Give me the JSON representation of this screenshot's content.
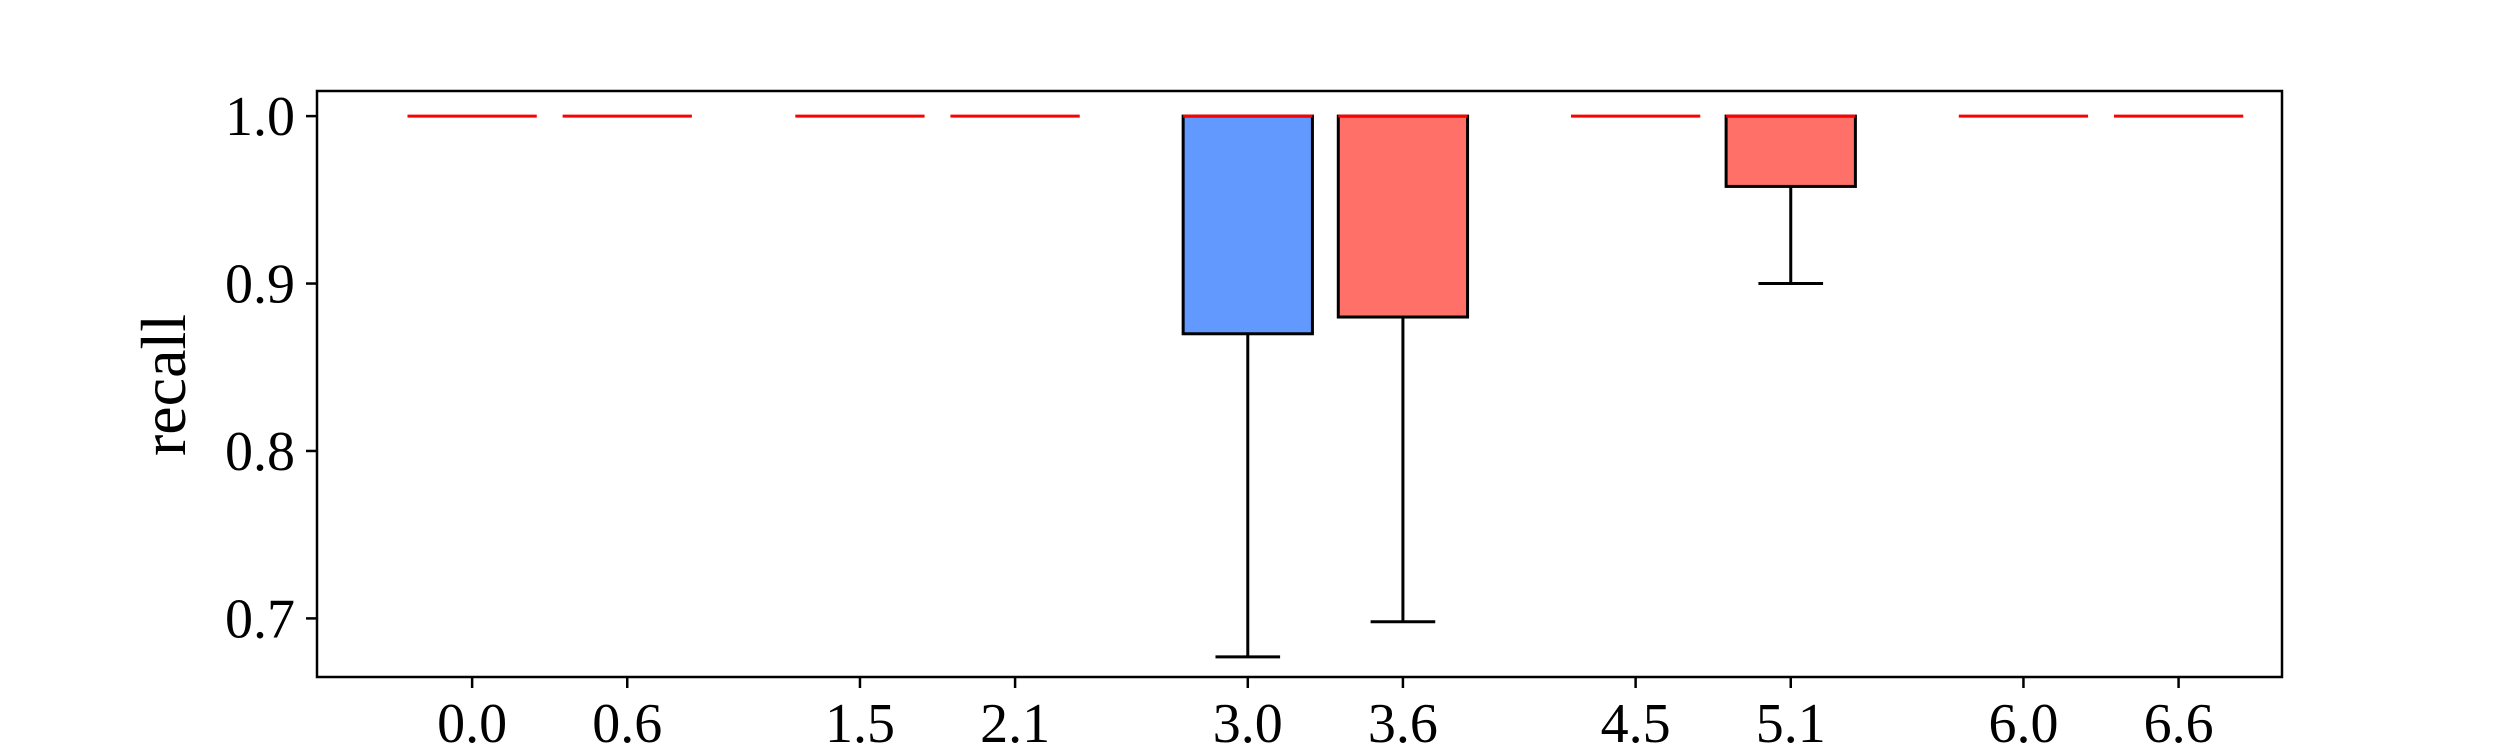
{
  "chart_data": {
    "type": "box",
    "title": "",
    "xlabel": "",
    "ylabel": "recall",
    "ylim": [
      0.665,
      1.015
    ],
    "yticks": [
      0.7,
      0.8,
      0.9,
      1.0
    ],
    "ytick_labels": [
      "0.7",
      "0.8",
      "0.9",
      "1.0"
    ],
    "xlim": [
      -0.6,
      7.0
    ],
    "xticks": [
      0.0,
      0.6,
      1.5,
      2.1,
      3.0,
      3.6,
      4.5,
      5.1,
      6.0,
      6.6
    ],
    "xtick_labels": [
      "0.0",
      "0.6",
      "1.5",
      "2.1",
      "3.0",
      "3.6",
      "4.5",
      "5.1",
      "6.0",
      "6.6"
    ],
    "box_width": 0.5,
    "grid": false,
    "legend": false,
    "colors": {
      "blue_box": "#6199fe",
      "red_box": "#ff7069",
      "median": "#ff0000",
      "edge": "#000000"
    },
    "boxes": [
      {
        "x": 0.0,
        "q1": 1.0,
        "median": 1.0,
        "q3": 1.0,
        "whisker_low": 1.0,
        "whisker_high": 1.0,
        "color": "blue_box"
      },
      {
        "x": 0.6,
        "q1": 1.0,
        "median": 1.0,
        "q3": 1.0,
        "whisker_low": 1.0,
        "whisker_high": 1.0,
        "color": "red_box"
      },
      {
        "x": 1.5,
        "q1": 1.0,
        "median": 1.0,
        "q3": 1.0,
        "whisker_low": 1.0,
        "whisker_high": 1.0,
        "color": "blue_box"
      },
      {
        "x": 2.1,
        "q1": 1.0,
        "median": 1.0,
        "q3": 1.0,
        "whisker_low": 1.0,
        "whisker_high": 1.0,
        "color": "red_box"
      },
      {
        "x": 3.0,
        "q1": 0.87,
        "median": 1.0,
        "q3": 1.0,
        "whisker_low": 0.677,
        "whisker_high": 1.0,
        "color": "blue_box"
      },
      {
        "x": 3.6,
        "q1": 0.88,
        "median": 1.0,
        "q3": 1.0,
        "whisker_low": 0.698,
        "whisker_high": 1.0,
        "color": "red_box"
      },
      {
        "x": 4.5,
        "q1": 1.0,
        "median": 1.0,
        "q3": 1.0,
        "whisker_low": 1.0,
        "whisker_high": 1.0,
        "color": "blue_box"
      },
      {
        "x": 5.1,
        "q1": 0.958,
        "median": 1.0,
        "q3": 1.0,
        "whisker_low": 0.9,
        "whisker_high": 1.0,
        "color": "red_box"
      },
      {
        "x": 6.0,
        "q1": 1.0,
        "median": 1.0,
        "q3": 1.0,
        "whisker_low": 1.0,
        "whisker_high": 1.0,
        "color": "blue_box"
      },
      {
        "x": 6.6,
        "q1": 1.0,
        "median": 1.0,
        "q3": 1.0,
        "whisker_low": 1.0,
        "whisker_high": 1.0,
        "color": "red_box"
      }
    ]
  }
}
